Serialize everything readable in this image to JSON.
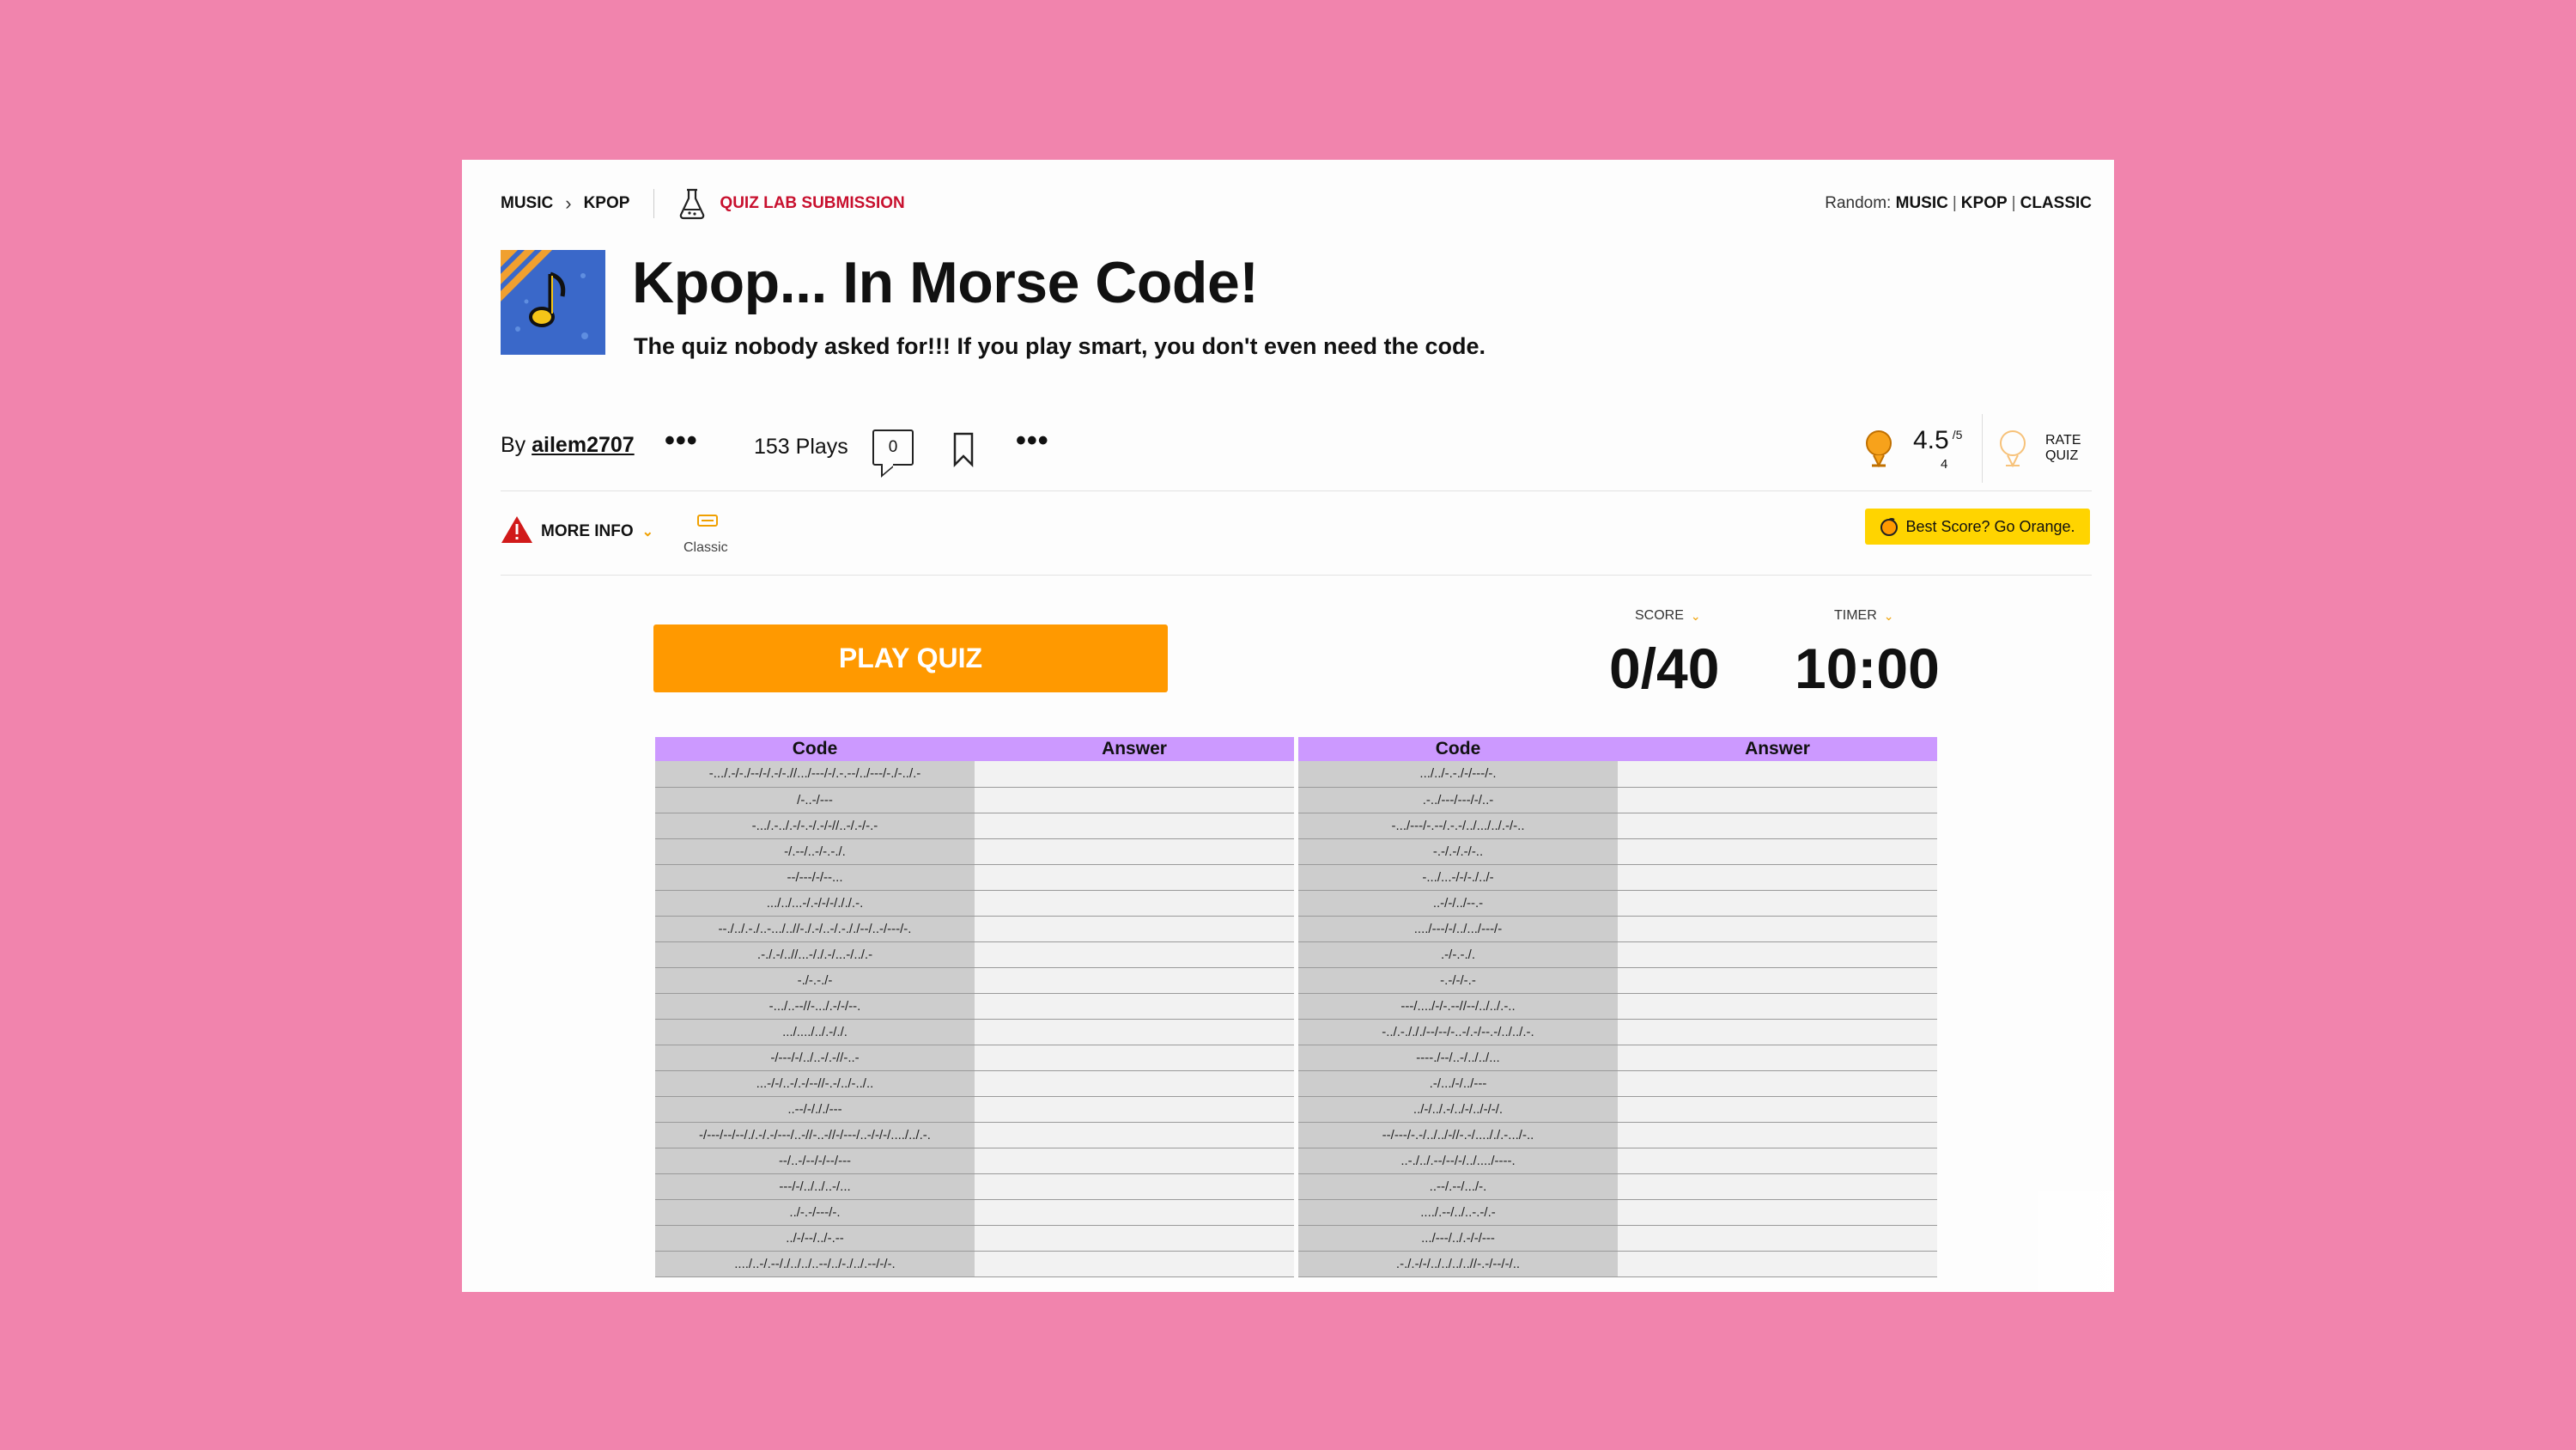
{
  "breadcrumb": {
    "items": [
      "MUSIC",
      "KPOP"
    ],
    "submission_label": "QUIZ LAB SUBMISSION"
  },
  "random": {
    "label": "Random:",
    "links": [
      "MUSIC",
      "KPOP",
      "CLASSIC"
    ]
  },
  "quiz": {
    "title": "Kpop... In Morse Code!",
    "description": "The quiz nobody asked for!!! If you play smart, you don't even need the code."
  },
  "meta": {
    "by_label": "By",
    "author": "ailem2707",
    "plays": "153 Plays",
    "comments": "0",
    "rating": "4.5",
    "rating_max": "/5",
    "rating_count": "4",
    "rate_label_1": "RATE",
    "rate_label_2": "QUIZ"
  },
  "info": {
    "more_info": "MORE INFO",
    "classic": "Classic",
    "best_score": "Best Score? Go Orange."
  },
  "play": {
    "button": "PLAY QUIZ",
    "score_label": "SCORE",
    "score_value": "0/40",
    "timer_label": "TIMER",
    "timer_value": "10:00"
  },
  "table": {
    "col_code": "Code",
    "col_answer": "Answer",
    "left_codes": [
      "-.../.-/-./--/-/.-/-.//.../---/-/.-.--/../---/-./-../.-",
      "/-..-/---",
      "-.../.-../.-/-.-/.-/-//..-/.-/-.-",
      "-/.--/..-/-.-./.",
      "--/---/-/--...",
      ".../../...-/.-/-/-/././.-.",
      "--./../.-./..-.../..//-./.-/..-/.-././--/..-/---/-.",
      ".-./.-/..//...-/./.-/...-/../.-",
      "-./-.-./-",
      "-.../..--//-.../.-/-/--.",
      ".../..../../.-/./.",
      "-/---/-/../..-/.-//-..-",
      "...-/-/..-/.-/--//-.-/../-../..",
      "..--/-/././---",
      "-/---/--/--/./.-/.-/---/..-//-..-//-/---/..-/-/-/..../../.-.",
      "--/..-/--/-/--/---",
      "---/-/../../..-/...",
      "../-.-/---/-.",
      "../-/--/../-.--",
      "..../..-/.--/./../../..--/../-./../.--/-/-."
    ],
    "right_codes": [
      ".../../-.-./-/---/-.",
      ".-../---/---/-/..-",
      "-.../---/-.--/.-.-/../.../../.-/-..",
      "-.-/.-/.-/-..",
      "-.../...-/-/-./../-",
      "..-/-/../--.-",
      "..../---/-/../.../---/-",
      ".-/-.-./.",
      "-.-/-/-.-",
      "---/..../-/-.--//--/../../.-..",
      "-../.-./././--/--/-..-/.-/--.-/../../.-.",
      "----./--/..-/../../...",
      ".-/.../-/../---",
      "../-/../.-/../-/../-/-/.",
      "--/---/-.-/../../-//-.-/...././.-.../-..",
      "..-./../.--/--/-/../..../----.",
      "..--/.--/.../-.",
      "..../.--/../..-.-/.-",
      ".../---/../.-/-/---",
      ".-./.-/-/../../../..//-.-/--/-/.."
    ]
  },
  "colors": {
    "background": "#f184ad",
    "accent_orange": "#ff9900",
    "brand_red": "#c8102e",
    "table_header": "#cc99ff",
    "best_score_yellow": "#ffd400"
  }
}
